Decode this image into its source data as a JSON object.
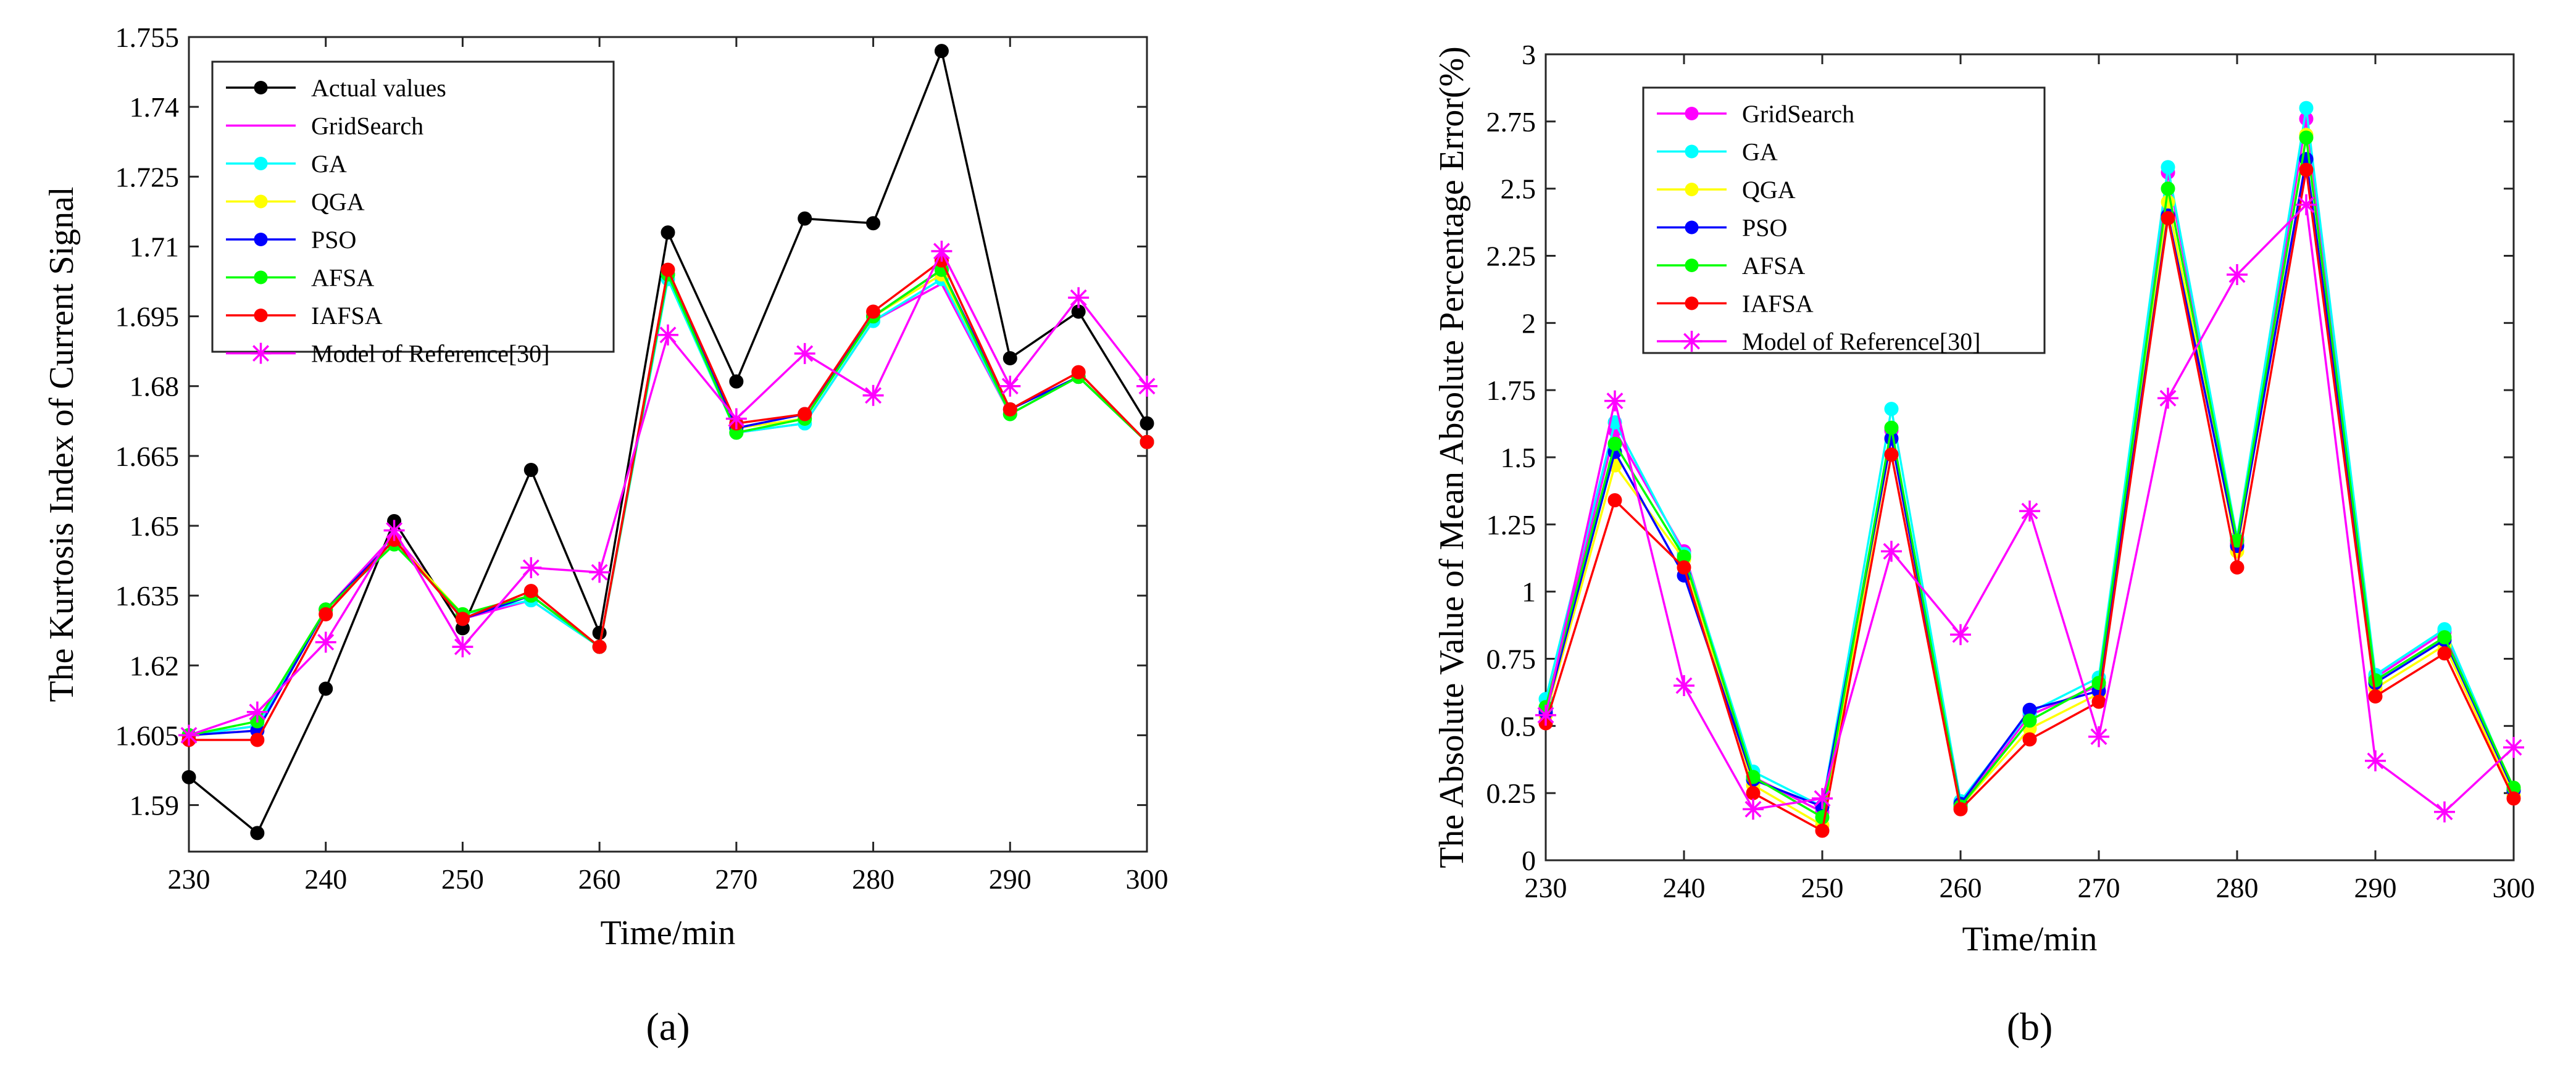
{
  "colors": {
    "actual": "#000000",
    "gridsearch": "#ff00ff",
    "ga": "#00ffff",
    "qga": "#ffff00",
    "pso": "#0000ff",
    "afsa": "#00ff00",
    "iafsa": "#ff0000",
    "reference": "#ff00ff"
  },
  "chart_data": [
    {
      "type": "line",
      "panel_label": "(a)",
      "xlabel": "Time/min",
      "ylabel": "The Kurtosis Index of Current Signal",
      "xlim": [
        230,
        300
      ],
      "ylim": [
        1.58,
        1.755
      ],
      "xticks": [
        230,
        240,
        250,
        260,
        270,
        280,
        290,
        300
      ],
      "yticks": [
        1.59,
        1.605,
        1.62,
        1.635,
        1.65,
        1.665,
        1.68,
        1.695,
        1.71,
        1.725,
        1.74,
        1.755
      ],
      "ytick_labels": [
        "1.59",
        "1.605",
        "1.62",
        "1.635",
        "1.65",
        "1.665",
        "1.68",
        "1.695",
        "1.71",
        "1.725",
        "1.74",
        "1.755"
      ],
      "grid": false,
      "legend_position": "top-left",
      "x": [
        230,
        235,
        240,
        245,
        250,
        255,
        260,
        265,
        270,
        275,
        280,
        285,
        290,
        295,
        300
      ],
      "series": [
        {
          "name": "Actual values",
          "color_key": "actual",
          "marker": "dot",
          "values": [
            1.596,
            1.584,
            1.615,
            1.651,
            1.628,
            1.662,
            1.627,
            1.713,
            1.681,
            1.716,
            1.715,
            1.752,
            1.686,
            1.696,
            1.672
          ]
        },
        {
          "name": "GridSearch",
          "color_key": "gridsearch",
          "marker": "none",
          "values": [
            1.605,
            1.607,
            1.632,
            1.648,
            1.63,
            1.634,
            1.624,
            1.704,
            1.67,
            1.672,
            1.694,
            1.702,
            1.674,
            1.682,
            1.668
          ]
        },
        {
          "name": "GA",
          "color_key": "ga",
          "marker": "dot",
          "values": [
            1.605,
            1.607,
            1.632,
            1.646,
            1.631,
            1.634,
            1.624,
            1.703,
            1.67,
            1.672,
            1.694,
            1.703,
            1.674,
            1.682,
            1.668
          ]
        },
        {
          "name": "QGA",
          "color_key": "qga",
          "marker": "dot",
          "values": [
            1.605,
            1.606,
            1.632,
            1.647,
            1.631,
            1.635,
            1.624,
            1.704,
            1.671,
            1.673,
            1.695,
            1.704,
            1.675,
            1.682,
            1.668
          ]
        },
        {
          "name": "PSO",
          "color_key": "pso",
          "marker": "dot",
          "values": [
            1.605,
            1.606,
            1.632,
            1.647,
            1.63,
            1.635,
            1.624,
            1.704,
            1.671,
            1.674,
            1.695,
            1.705,
            1.675,
            1.682,
            1.668
          ]
        },
        {
          "name": "AFSA",
          "color_key": "afsa",
          "marker": "dot",
          "values": [
            1.605,
            1.608,
            1.632,
            1.646,
            1.631,
            1.635,
            1.624,
            1.704,
            1.67,
            1.673,
            1.695,
            1.705,
            1.674,
            1.682,
            1.668
          ]
        },
        {
          "name": "IAFSA",
          "color_key": "iafsa",
          "marker": "dot",
          "values": [
            1.604,
            1.604,
            1.631,
            1.647,
            1.63,
            1.636,
            1.624,
            1.705,
            1.672,
            1.674,
            1.696,
            1.707,
            1.675,
            1.683,
            1.668
          ]
        },
        {
          "name": "Model of Reference[30]",
          "color_key": "reference",
          "marker": "star",
          "values": [
            1.605,
            1.61,
            1.625,
            1.649,
            1.624,
            1.641,
            1.64,
            1.691,
            1.673,
            1.687,
            1.678,
            1.709,
            1.68,
            1.699,
            1.68
          ]
        }
      ]
    },
    {
      "type": "line",
      "panel_label": "(b)",
      "xlabel": "Time/min",
      "ylabel": "The Absolute Value of Mean Absolute Percentage Error(%)",
      "xlim": [
        230,
        300
      ],
      "ylim": [
        0,
        3
      ],
      "xticks": [
        230,
        240,
        250,
        260,
        270,
        280,
        290,
        300
      ],
      "yticks": [
        0,
        0.25,
        0.5,
        0.75,
        1,
        1.25,
        1.5,
        1.75,
        2,
        2.25,
        2.5,
        2.75,
        3
      ],
      "ytick_labels": [
        "0",
        "0.25",
        "0.5",
        "0.75",
        "1",
        "1.25",
        "1.5",
        "1.75",
        "2",
        "2.25",
        "2.5",
        "2.75",
        "3"
      ],
      "grid": false,
      "legend_position": "top-left",
      "x": [
        230,
        235,
        240,
        245,
        250,
        255,
        260,
        265,
        270,
        275,
        280,
        285,
        290,
        295,
        300
      ],
      "series": [
        {
          "name": "GridSearch",
          "color_key": "gridsearch",
          "marker": "dot",
          "values": [
            0.56,
            1.6,
            1.15,
            0.31,
            0.18,
            1.6,
            0.2,
            0.54,
            0.65,
            2.56,
            1.18,
            2.76,
            0.68,
            0.85,
            0.26
          ]
        },
        {
          "name": "GA",
          "color_key": "ga",
          "marker": "dot",
          "values": [
            0.6,
            1.63,
            1.14,
            0.33,
            0.2,
            1.68,
            0.22,
            0.55,
            0.68,
            2.58,
            1.2,
            2.8,
            0.69,
            0.86,
            0.26
          ]
        },
        {
          "name": "QGA",
          "color_key": "qga",
          "marker": "dot",
          "values": [
            0.54,
            1.47,
            1.12,
            0.28,
            0.13,
            1.57,
            0.2,
            0.49,
            0.62,
            2.45,
            1.15,
            2.7,
            0.64,
            0.8,
            0.24
          ]
        },
        {
          "name": "PSO",
          "color_key": "pso",
          "marker": "dot",
          "values": [
            0.55,
            1.52,
            1.06,
            0.3,
            0.2,
            1.57,
            0.21,
            0.56,
            0.63,
            2.4,
            1.17,
            2.61,
            0.66,
            0.82,
            0.26
          ]
        },
        {
          "name": "AFSA",
          "color_key": "afsa",
          "marker": "dot",
          "values": [
            0.57,
            1.55,
            1.13,
            0.31,
            0.16,
            1.61,
            0.2,
            0.52,
            0.66,
            2.5,
            1.19,
            2.69,
            0.67,
            0.83,
            0.27
          ]
        },
        {
          "name": "IAFSA",
          "color_key": "iafsa",
          "marker": "dot",
          "values": [
            0.51,
            1.34,
            1.09,
            0.25,
            0.11,
            1.51,
            0.19,
            0.45,
            0.59,
            2.39,
            1.09,
            2.57,
            0.61,
            0.77,
            0.23
          ]
        },
        {
          "name": "Model of Reference[30]",
          "color_key": "reference",
          "marker": "star",
          "values": [
            0.54,
            1.71,
            0.65,
            0.19,
            0.23,
            1.15,
            0.84,
            1.3,
            0.46,
            1.72,
            2.18,
            2.44,
            0.37,
            0.18,
            0.42
          ]
        }
      ]
    }
  ]
}
